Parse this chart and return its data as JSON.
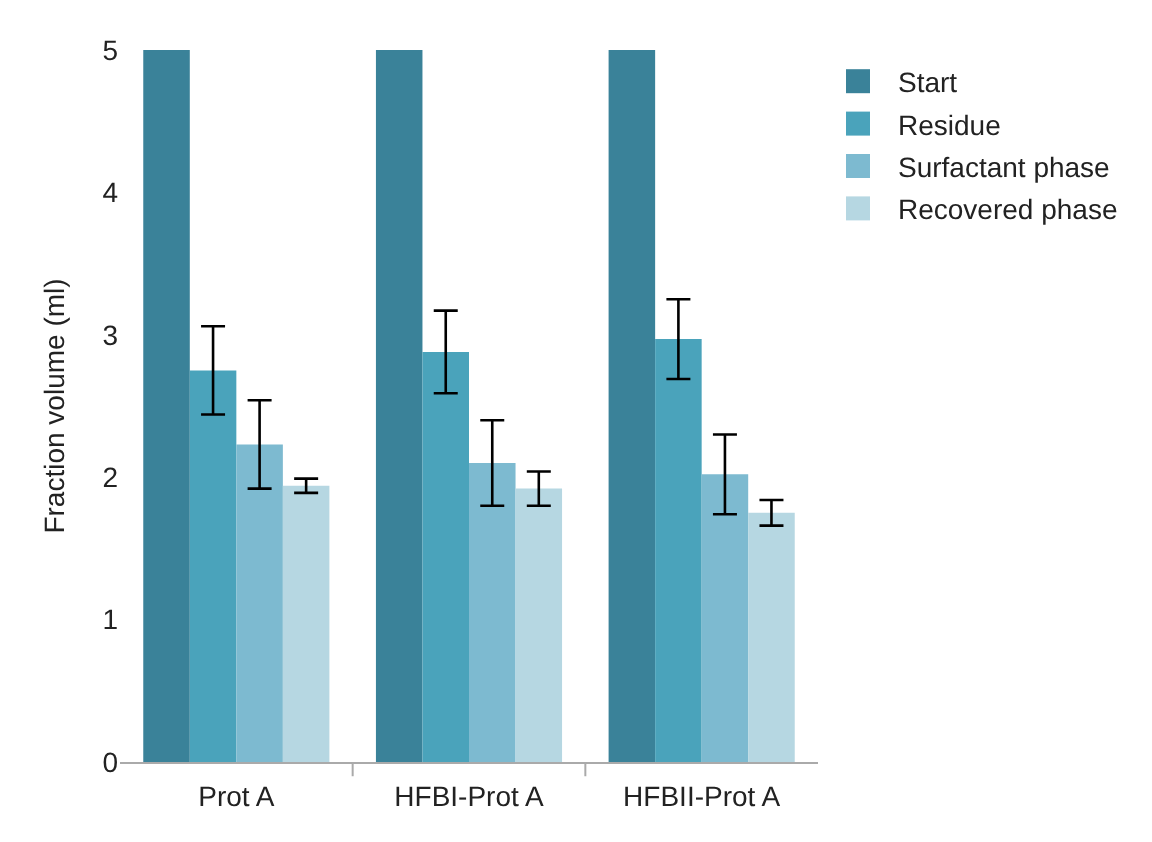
{
  "chart_data": {
    "type": "bar",
    "ylabel": "Fraction volume (ml)",
    "categories": [
      "Prot A",
      "HFBI-Prot A",
      "HFBII-Prot A"
    ],
    "series": [
      {
        "name": "Start",
        "color": "#3a8299",
        "values": [
          5,
          5,
          5
        ]
      },
      {
        "name": "Residue",
        "color": "#4aa3bb",
        "values": [
          2.75,
          2.88,
          2.97
        ],
        "errors": [
          0.31,
          0.29,
          0.28
        ]
      },
      {
        "name": "Surfactant phase",
        "color": "#7dbad0",
        "values": [
          2.23,
          2.1,
          2.02
        ],
        "errors": [
          0.31,
          0.3,
          0.28
        ]
      },
      {
        "name": "Recovered phase",
        "color": "#b6d7e2",
        "values": [
          1.94,
          1.92,
          1.75
        ],
        "errors": [
          0.05,
          0.12,
          0.09
        ]
      }
    ],
    "ylim": [
      0,
      5
    ],
    "yticks": [
      0,
      1,
      2,
      3,
      4,
      5
    ],
    "legend": "top right"
  }
}
